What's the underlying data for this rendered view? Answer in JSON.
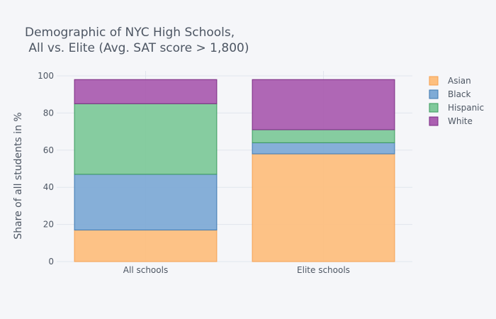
{
  "chart_data": {
    "type": "bar",
    "stacked": true,
    "title": "Demographic of NYC High Schools,",
    "subtitle": " All vs. Elite (Avg. SAT score > 1,800)",
    "xlabel": "",
    "ylabel": "Share of all students in %",
    "categories": [
      "All schools",
      "Elite schools"
    ],
    "ylim": [
      0,
      100
    ],
    "yticks": [
      "0",
      "20",
      "40",
      "60",
      "80",
      "100"
    ],
    "grid": true,
    "legend_position": "right",
    "series": [
      {
        "name": "Asian",
        "values": [
          17,
          58
        ],
        "color": "#fdbf7f",
        "border": "#f5a050"
      },
      {
        "name": "Black",
        "values": [
          30,
          6
        ],
        "color": "#7fabd6",
        "border": "#3d78b0"
      },
      {
        "name": "Hispanic",
        "values": [
          38,
          7
        ],
        "color": "#80c99b",
        "border": "#3a9a5d"
      },
      {
        "name": "White",
        "values": [
          13,
          27
        ],
        "color": "#ab5fb1",
        "border": "#7a2b82"
      }
    ]
  }
}
